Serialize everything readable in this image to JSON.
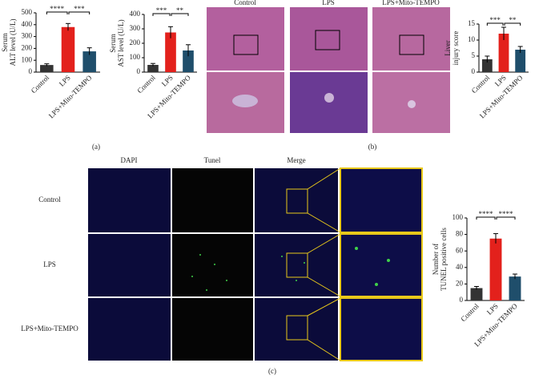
{
  "chart_data": [
    {
      "type": "bar",
      "ylabel": [
        "Serum",
        "ALT level (U/L)"
      ],
      "categories": [
        "Control",
        "LPS",
        "LPS+Mito-TEMPO"
      ],
      "values": [
        60,
        380,
        175
      ],
      "errors": [
        10,
        30,
        30
      ],
      "colors": [
        "#333333",
        "#e3211c",
        "#1f4e6b"
      ],
      "ylim": [
        0,
        500
      ],
      "yticks": [
        0,
        100,
        200,
        300,
        400,
        500
      ],
      "significance": [
        "****",
        "***"
      ]
    },
    {
      "type": "bar",
      "ylabel": [
        "Serum",
        "AST level (U/L)"
      ],
      "categories": [
        "Control",
        "LPS",
        "LPS+Mito-TEMPO"
      ],
      "values": [
        50,
        275,
        150
      ],
      "errors": [
        10,
        40,
        40
      ],
      "colors": [
        "#333333",
        "#e3211c",
        "#1f4e6b"
      ],
      "ylim": [
        0,
        400
      ],
      "yticks": [
        0,
        100,
        200,
        300,
        400
      ],
      "significance": [
        "***",
        "**"
      ]
    },
    {
      "type": "bar",
      "ylabel": [
        "Liver",
        "injury score"
      ],
      "categories": [
        "Control",
        "LPS",
        "LPS+Mito-TEMPO"
      ],
      "values": [
        4,
        12,
        7
      ],
      "errors": [
        1,
        2,
        1
      ],
      "colors": [
        "#333333",
        "#e3211c",
        "#1f4e6b"
      ],
      "ylim": [
        0,
        15
      ],
      "yticks": [
        0,
        5,
        10,
        15
      ],
      "significance": [
        "***",
        "**"
      ]
    },
    {
      "type": "bar",
      "ylabel": [
        "Number of",
        "TUNEL positive cells"
      ],
      "categories": [
        "Control",
        "LPS",
        "LPS+Mito-TEMPO"
      ],
      "values": [
        15,
        75,
        29
      ],
      "errors": [
        2,
        6,
        3
      ],
      "colors": [
        "#333333",
        "#e3211c",
        "#1f4e6b"
      ],
      "ylim": [
        0,
        100
      ],
      "yticks": [
        0,
        20,
        40,
        60,
        80,
        100
      ],
      "significance": [
        "****",
        "****"
      ]
    }
  ],
  "histology": {
    "columns": [
      "Control",
      "LPS",
      "LPS+Mito-TEMPO"
    ]
  },
  "fluorescence": {
    "columns": [
      "DAPI",
      "Tunel",
      "Merge"
    ],
    "rows": [
      "Control",
      "LPS",
      "LPS+Mito-TEMPO"
    ]
  },
  "panels": {
    "a": "(a)",
    "b": "(b)",
    "c": "(c)"
  }
}
